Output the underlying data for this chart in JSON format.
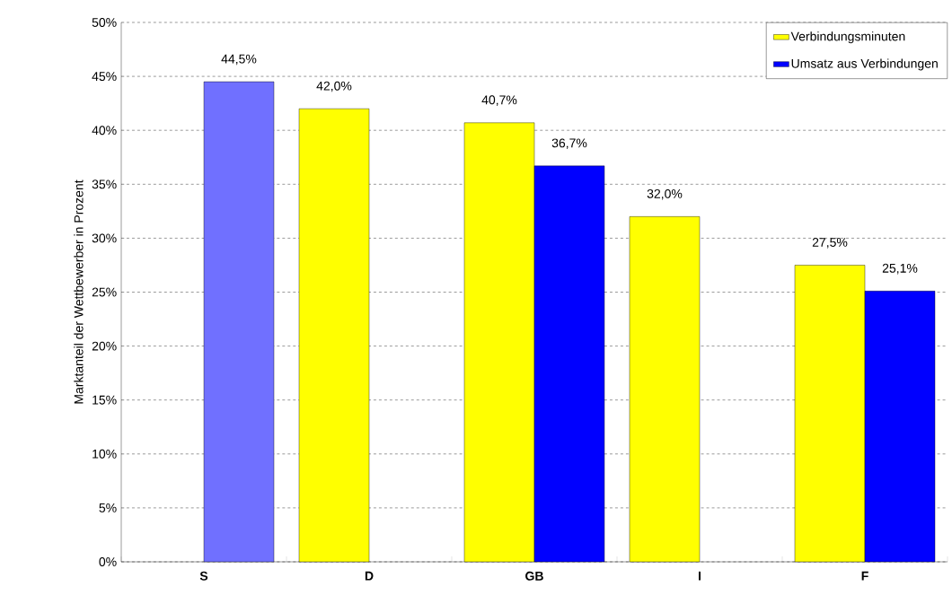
{
  "chart_data": {
    "type": "bar",
    "ylabel": "Marktanteil der Wettbewerber in Prozent",
    "categories": [
      "S",
      "D",
      "GB",
      "I",
      "F"
    ],
    "series": [
      {
        "name": "Verbindungsminuten",
        "color": "#ffff00",
        "values": [
          null,
          42.0,
          40.7,
          32.0,
          27.5
        ],
        "value_labels": [
          null,
          "42,0%",
          "40,7%",
          "32,0%",
          "27,5%"
        ]
      },
      {
        "name": "Umsatz aus Verbindungen",
        "color": "#0000ff",
        "colors": [
          "#7070ff",
          "#0000ff",
          "#0000ff",
          "#0000ff",
          "#0000ff"
        ],
        "values": [
          44.5,
          null,
          36.7,
          null,
          25.1
        ],
        "value_labels": [
          "44,5%",
          null,
          "36,7%",
          null,
          "25,1%"
        ]
      }
    ],
    "ylim": [
      0,
      50
    ],
    "yticks": [
      {
        "value": 0,
        "label": "0%"
      },
      {
        "value": 5,
        "label": "5%"
      },
      {
        "value": 10,
        "label": "10%"
      },
      {
        "value": 15,
        "label": "15%"
      },
      {
        "value": 20,
        "label": "20%"
      },
      {
        "value": 25,
        "label": "25%"
      },
      {
        "value": 30,
        "label": "30%"
      },
      {
        "value": 35,
        "label": "35%"
      },
      {
        "value": 40,
        "label": "40%"
      },
      {
        "value": 45,
        "label": "45%"
      },
      {
        "value": 50,
        "label": "50%"
      }
    ],
    "grid": "y",
    "legend": "top right"
  }
}
